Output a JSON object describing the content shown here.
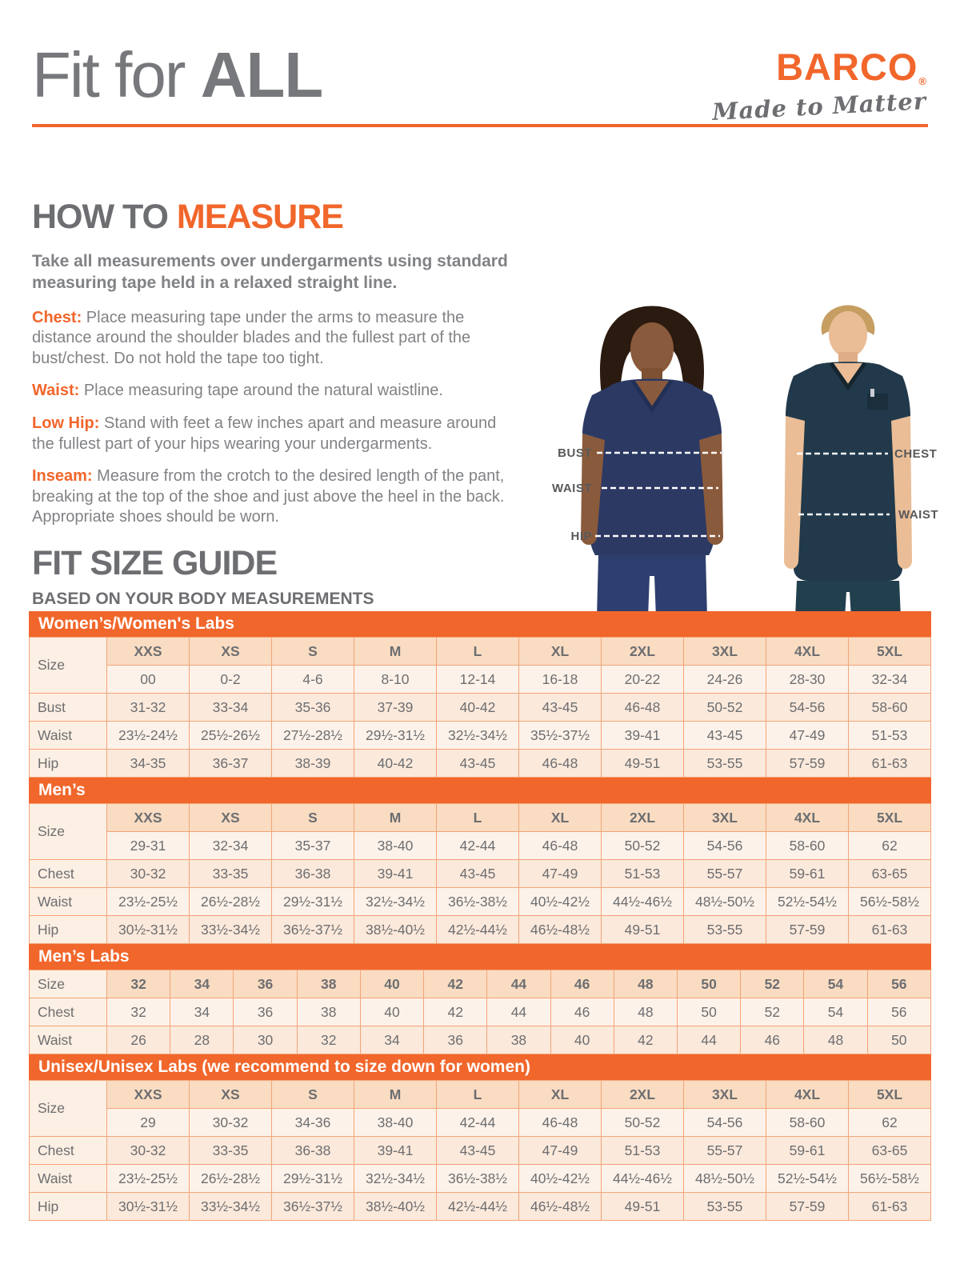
{
  "header": {
    "title_regular": "Fit for ",
    "title_bold": "ALL"
  },
  "logo": {
    "brand": "BARCO",
    "registered": "®",
    "tagline": "Made to Matter"
  },
  "colors": {
    "accent_orange": "#F1662B",
    "heading_gray": "#6D6E71",
    "body_gray": "#808285",
    "scrub_navy": "#2B3963",
    "scrub_teal": "#21394A",
    "table_border": "#F3A477",
    "table_header_peach": "#F9DCC2",
    "table_row_light": "#FDF2E9"
  },
  "how_to_measure": {
    "heading_gray": "HOW TO ",
    "heading_orange": "MEASURE",
    "intro": "Take all measurements over undergarments using standard measuring tape held in a relaxed straight line.",
    "items": [
      {
        "label": "Chest:",
        "text": "Place measuring tape under the arms to measure the distance around the shoulder blades and the fullest part of the bust/chest. Do not hold the tape too tight."
      },
      {
        "label": "Waist:",
        "text": "Place measuring tape around the natural waistline."
      },
      {
        "label": "Low Hip:",
        "text": "Stand with feet a few inches apart and measure around the fullest part of your hips wearing your undergarments."
      },
      {
        "label": "Inseam:",
        "text": "Measure from the crotch to the desired length of the pant, breaking at the top of the shoe and just above the heel in the back. Appropriate shoes should be worn."
      }
    ]
  },
  "figure": {
    "labels": {
      "bust": "BUST",
      "waist_left": "WAIST",
      "hip": "HIP",
      "chest": "CHEST",
      "waist_right": "WAIST"
    }
  },
  "size_guide": {
    "heading": "FIT SIZE GUIDE",
    "subheading": "BASED ON YOUR BODY MEASUREMENTS",
    "tables": [
      {
        "title": "Women’s/Women's Labs",
        "size_label": "Size",
        "size_row": [
          "XXS",
          "XS",
          "S",
          "M",
          "L",
          "XL",
          "2XL",
          "3XL",
          "4XL",
          "5XL"
        ],
        "alt_row": [
          "00",
          "0-2",
          "4-6",
          "8-10",
          "12-14",
          "16-18",
          "20-22",
          "24-26",
          "28-30",
          "32-34"
        ],
        "rows": [
          {
            "label": "Bust",
            "values": [
              "31-32",
              "33-34",
              "35-36",
              "37-39",
              "40-42",
              "43-45",
              "46-48",
              "50-52",
              "54-56",
              "58-60"
            ]
          },
          {
            "label": "Waist",
            "values": [
              "23½-24½",
              "25½-26½",
              "27½-28½",
              "29½-31½",
              "32½-34½",
              "35½-37½",
              "39-41",
              "43-45",
              "47-49",
              "51-53"
            ]
          },
          {
            "label": "Hip",
            "values": [
              "34-35",
              "36-37",
              "38-39",
              "40-42",
              "43-45",
              "46-48",
              "49-51",
              "53-55",
              "57-59",
              "61-63"
            ]
          }
        ]
      },
      {
        "title": "Men’s",
        "size_label": "Size",
        "size_row": [
          "XXS",
          "XS",
          "S",
          "M",
          "L",
          "XL",
          "2XL",
          "3XL",
          "4XL",
          "5XL"
        ],
        "alt_row": [
          "29-31",
          "32-34",
          "35-37",
          "38-40",
          "42-44",
          "46-48",
          "50-52",
          "54-56",
          "58-60",
          "62"
        ],
        "rows": [
          {
            "label": "Chest",
            "values": [
              "30-32",
              "33-35",
              "36-38",
              "39-41",
              "43-45",
              "47-49",
              "51-53",
              "55-57",
              "59-61",
              "63-65"
            ]
          },
          {
            "label": "Waist",
            "values": [
              "23½-25½",
              "26½-28½",
              "29½-31½",
              "32½-34½",
              "36½-38½",
              "40½-42½",
              "44½-46½",
              "48½-50½",
              "52½-54½",
              "56½-58½"
            ]
          },
          {
            "label": "Hip",
            "values": [
              "30½-31½",
              "33½-34½",
              "36½-37½",
              "38½-40½",
              "42½-44½",
              "46½-48½",
              "49-51",
              "53-55",
              "57-59",
              "61-63"
            ]
          }
        ]
      },
      {
        "title": "Men’s Labs",
        "size_label": "Size",
        "size_row": [
          "32",
          "34",
          "36",
          "38",
          "40",
          "42",
          "44",
          "46",
          "48",
          "50",
          "52",
          "54",
          "56"
        ],
        "rows": [
          {
            "label": "Chest",
            "values": [
              "32",
              "34",
              "36",
              "38",
              "40",
              "42",
              "44",
              "46",
              "48",
              "50",
              "52",
              "54",
              "56"
            ]
          },
          {
            "label": "Waist",
            "values": [
              "26",
              "28",
              "30",
              "32",
              "34",
              "36",
              "38",
              "40",
              "42",
              "44",
              "46",
              "48",
              "50"
            ]
          }
        ]
      },
      {
        "title": "Unisex/Unisex Labs (we recommend to size down for women)",
        "size_label": "Size",
        "size_row": [
          "XXS",
          "XS",
          "S",
          "M",
          "L",
          "XL",
          "2XL",
          "3XL",
          "4XL",
          "5XL"
        ],
        "alt_row": [
          "29",
          "30-32",
          "34-36",
          "38-40",
          "42-44",
          "46-48",
          "50-52",
          "54-56",
          "58-60",
          "62"
        ],
        "rows": [
          {
            "label": "Chest",
            "values": [
              "30-32",
              "33-35",
              "36-38",
              "39-41",
              "43-45",
              "47-49",
              "51-53",
              "55-57",
              "59-61",
              "63-65"
            ]
          },
          {
            "label": "Waist",
            "values": [
              "23½-25½",
              "26½-28½",
              "29½-31½",
              "32½-34½",
              "36½-38½",
              "40½-42½",
              "44½-46½",
              "48½-50½",
              "52½-54½",
              "56½-58½"
            ]
          },
          {
            "label": "Hip",
            "values": [
              "30½-31½",
              "33½-34½",
              "36½-37½",
              "38½-40½",
              "42½-44½",
              "46½-48½",
              "49-51",
              "53-55",
              "57-59",
              "61-63"
            ]
          }
        ]
      }
    ]
  }
}
